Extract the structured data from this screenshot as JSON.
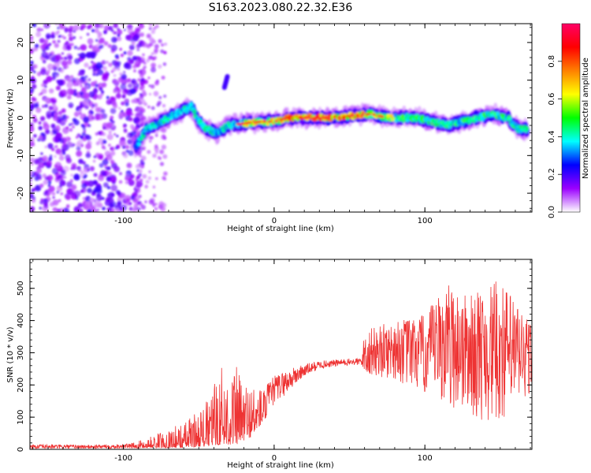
{
  "title": "S163.2023.080.22.32.E36",
  "chart_data": [
    {
      "type": "heatmap",
      "xlabel": "Height of straight line (km)",
      "ylabel": "Frequency (Hz)",
      "xlim": [
        -162,
        171
      ],
      "ylim": [
        -25,
        25
      ],
      "xticks": [
        -100,
        0,
        100
      ],
      "yticks": [
        -20,
        -10,
        0,
        10,
        20
      ],
      "colorbar": {
        "label": "Normalized spectral amplitude",
        "range": [
          0,
          1
        ],
        "ticks": [
          "0.0",
          "0.2",
          "0.4",
          "0.6",
          "0.8"
        ],
        "colors": [
          "#ffffff",
          "#9b00ff",
          "#0000ff",
          "#00ffff",
          "#00ff00",
          "#ffff00",
          "#ff8000",
          "#ff0000",
          "#ff0066"
        ]
      },
      "ridge": [
        {
          "x": -92,
          "y": -8
        },
        {
          "x": -85,
          "y": -3
        },
        {
          "x": -75,
          "y": -1
        },
        {
          "x": -65,
          "y": 1
        },
        {
          "x": -55,
          "y": 3
        },
        {
          "x": -50,
          "y": -1
        },
        {
          "x": -45,
          "y": -3
        },
        {
          "x": -38,
          "y": -4
        },
        {
          "x": -30,
          "y": -2
        },
        {
          "x": -20,
          "y": -1.5
        },
        {
          "x": -10,
          "y": -1
        },
        {
          "x": 0,
          "y": -1
        },
        {
          "x": 10,
          "y": 0
        },
        {
          "x": 25,
          "y": 0
        },
        {
          "x": 40,
          "y": 0
        },
        {
          "x": 50,
          "y": 0.5
        },
        {
          "x": 65,
          "y": 1
        },
        {
          "x": 75,
          "y": 0
        },
        {
          "x": 85,
          "y": 0
        },
        {
          "x": 95,
          "y": 0
        },
        {
          "x": 105,
          "y": -1
        },
        {
          "x": 115,
          "y": -2
        },
        {
          "x": 125,
          "y": -1
        },
        {
          "x": 135,
          "y": 0
        },
        {
          "x": 145,
          "y": 1
        },
        {
          "x": 155,
          "y": 0
        },
        {
          "x": 162,
          "y": -3
        },
        {
          "x": 168,
          "y": -3
        }
      ],
      "spike": [
        {
          "x": -33,
          "y": 8
        },
        {
          "x": -31,
          "y": 11
        }
      ]
    },
    {
      "type": "line",
      "xlabel": "Height of straight line (km)",
      "ylabel": "SNR (10 * v/v)",
      "xlim": [
        -162,
        171
      ],
      "ylim": [
        0,
        590
      ],
      "xticks": [
        -100,
        0,
        100
      ],
      "yticks": [
        0,
        100,
        200,
        300,
        400,
        500
      ],
      "series": [
        {
          "color": "#ee3333",
          "envelope": [
            {
              "x": -162,
              "low": 2,
              "high": 15
            },
            {
              "x": -120,
              "low": 2,
              "high": 14
            },
            {
              "x": -95,
              "low": 3,
              "high": 18
            },
            {
              "x": -80,
              "low": 5,
              "high": 45
            },
            {
              "x": -60,
              "low": 5,
              "high": 85
            },
            {
              "x": -45,
              "low": 10,
              "high": 150
            },
            {
              "x": -35,
              "low": 15,
              "high": 270
            },
            {
              "x": -25,
              "low": 15,
              "high": 260
            },
            {
              "x": -15,
              "low": 40,
              "high": 210
            },
            {
              "x": -5,
              "low": 100,
              "high": 200
            },
            {
              "x": 0,
              "low": 140,
              "high": 230
            },
            {
              "x": 10,
              "low": 180,
              "high": 250
            },
            {
              "x": 20,
              "low": 225,
              "high": 265
            },
            {
              "x": 30,
              "low": 250,
              "high": 275
            },
            {
              "x": 45,
              "low": 260,
              "high": 280
            },
            {
              "x": 58,
              "low": 260,
              "high": 285
            },
            {
              "x": 60,
              "low": 225,
              "high": 370
            },
            {
              "x": 80,
              "low": 215,
              "high": 400
            },
            {
              "x": 100,
              "low": 160,
              "high": 420
            },
            {
              "x": 115,
              "low": 130,
              "high": 520
            },
            {
              "x": 130,
              "low": 100,
              "high": 480
            },
            {
              "x": 150,
              "low": 70,
              "high": 530
            },
            {
              "x": 171,
              "low": 160,
              "high": 400
            }
          ]
        }
      ]
    }
  ]
}
